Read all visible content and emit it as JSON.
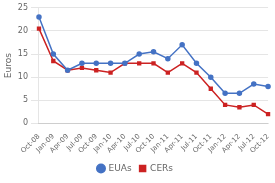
{
  "chart_data": {
    "type": "line",
    "categories": [
      "Oct-08",
      "Jan-09",
      "Apr-09",
      "Jul-09",
      "Oct-09",
      "Jan-10",
      "Apr-10",
      "Jul-10",
      "Oct-10",
      "Jan-11",
      "Apr-11",
      "Jul-11",
      "Oct-11",
      "Jan-12",
      "Apr-12",
      "Jul-12",
      "Oct-12"
    ],
    "series": [
      {
        "name": "EUAs",
        "color": "#4472C4",
        "marker": "circle",
        "values": [
          23,
          15,
          11.5,
          13,
          13,
          13,
          13,
          15,
          15.5,
          14,
          17,
          13,
          10,
          6.5,
          6.5,
          8.5,
          8
        ]
      },
      {
        "name": "CERs",
        "color": "#CC2222",
        "marker": "square",
        "values": [
          20.5,
          13.5,
          11.5,
          12,
          11.5,
          11,
          13,
          13,
          13,
          11,
          13,
          11,
          7.5,
          4,
          3.5,
          4,
          2
        ]
      }
    ],
    "ylabel": "Euros",
    "ylim": [
      0,
      25
    ],
    "yticks": [
      0,
      5,
      10,
      15,
      20,
      25
    ],
    "grid": true,
    "legend": "bottom"
  }
}
